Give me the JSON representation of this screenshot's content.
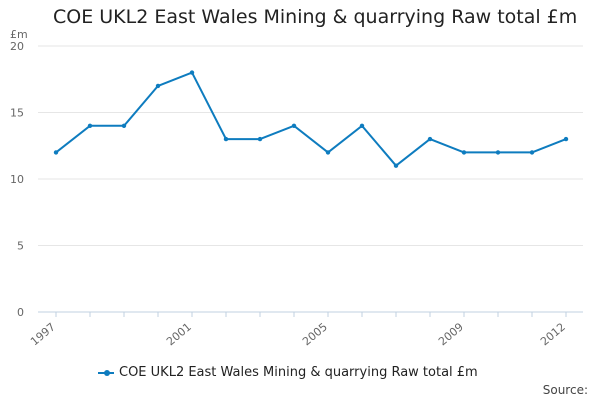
{
  "chart_data": {
    "type": "line",
    "title": "COE UKL2 East Wales Mining & quarrying Raw total £m",
    "y_unit_label": "£m",
    "ylim": [
      0,
      20
    ],
    "y_ticks": [
      0,
      5,
      10,
      15,
      20
    ],
    "x": [
      1997,
      1998,
      1999,
      2000,
      2001,
      2002,
      2003,
      2004,
      2005,
      2006,
      2007,
      2008,
      2009,
      2010,
      2011,
      2012
    ],
    "x_tick_labels": [
      "1997",
      "2001",
      "2005",
      "2009",
      "2012"
    ],
    "series": [
      {
        "name": "COE UKL2 East Wales Mining & quarrying Raw total £m",
        "values": [
          12,
          14,
          14,
          17,
          18,
          13,
          13,
          14,
          12,
          14,
          11,
          13,
          12,
          12,
          12,
          13
        ]
      }
    ],
    "grid": true,
    "legend_position": "bottom",
    "source_label": "Source:",
    "colors": {
      "series": "#0e7cbf",
      "grid": "#e6e6e6",
      "axis": "#c0d0e0"
    }
  }
}
